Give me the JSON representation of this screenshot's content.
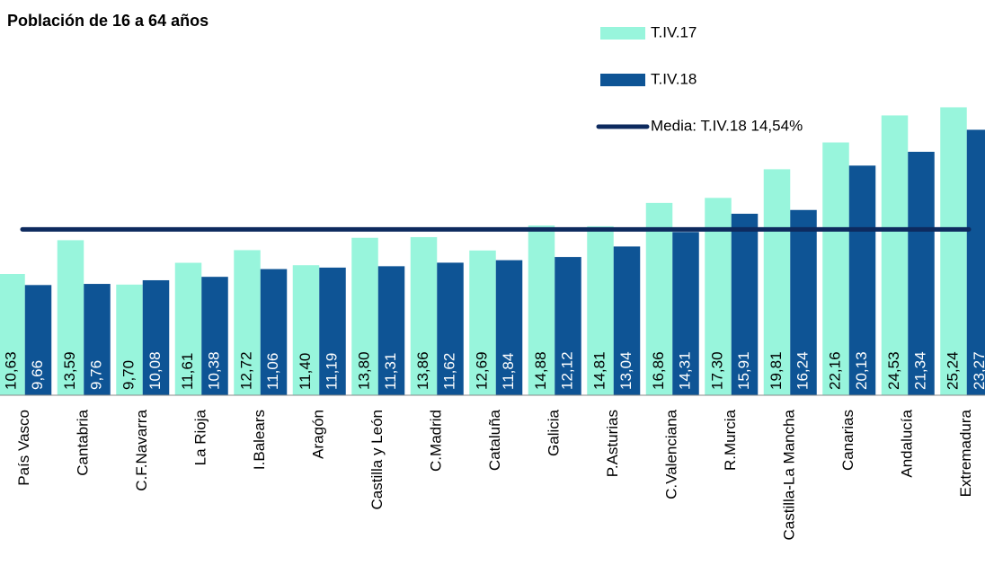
{
  "chart_data": {
    "type": "bar",
    "title": "Población de 16 a 64 años",
    "categories": [
      "País Vasco",
      "Cantabria",
      "C.F.Navarra",
      "La Rioja",
      "I.Balears",
      "Aragón",
      "Castilla y León",
      "C.Madrid",
      "Cataluña",
      "Galicia",
      "P.Asturias",
      "C.Valenciana",
      "R.Murcia",
      "Castilla-La Mancha",
      "Canarias",
      "Andalucía",
      "Extremadura"
    ],
    "series": [
      {
        "name": "T.IV.17",
        "color": "#98f5dc",
        "values": [
          10.63,
          13.59,
          9.7,
          11.61,
          12.72,
          11.4,
          13.8,
          13.86,
          12.69,
          14.88,
          14.81,
          16.86,
          17.3,
          19.81,
          22.16,
          24.53,
          25.24
        ],
        "value_labels": [
          "10,63",
          "13,59",
          "9,70",
          "11,61",
          "12,72",
          "11,40",
          "13,80",
          "13,86",
          "12,69",
          "14,88",
          "14,81",
          "16,86",
          "17,30",
          "19,81",
          "22,16",
          "24,53",
          "25,24"
        ]
      },
      {
        "name": "T.IV.18",
        "color": "#0e5495",
        "values": [
          9.66,
          9.76,
          10.08,
          10.38,
          11.06,
          11.19,
          11.31,
          11.62,
          11.84,
          12.12,
          13.04,
          14.31,
          15.91,
          16.24,
          20.13,
          21.34,
          23.27
        ],
        "value_labels": [
          "9,66",
          "9,76",
          "10,08",
          "10,38",
          "11,06",
          "11,19",
          "11,31",
          "11,62",
          "11,84",
          "12,12",
          "13,04",
          "14,31",
          "15,91",
          "16,24",
          "20,13",
          "21,34",
          "23,27"
        ]
      }
    ],
    "reference_line": {
      "name": "Media: T.IV.18 14,54%",
      "value": 14.54,
      "color": "#0d2a5e"
    },
    "ylim": [
      0,
      30
    ]
  }
}
